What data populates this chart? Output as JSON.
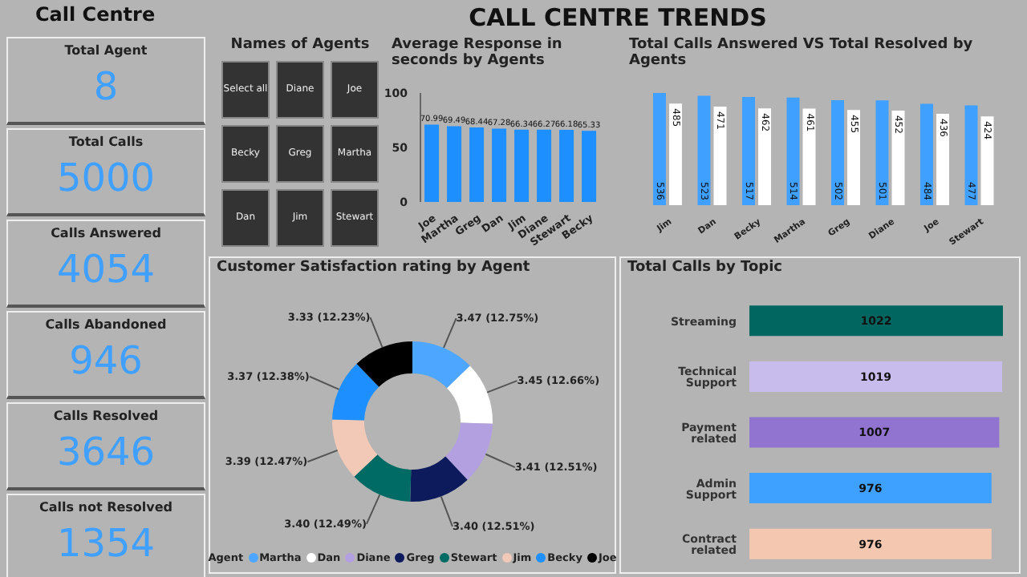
{
  "chart_data": [
    {
      "type": "other",
      "title": "CALL CENTRE TRENDS"
    },
    {
      "type": "other",
      "title": "Call Centre",
      "annotations": [
        "Total Agent",
        "8",
        "Total Calls",
        "5000",
        "Calls Answered",
        "4054",
        "Calls Abandoned",
        "946",
        "Calls Resolved",
        "3646",
        "Calls not Resolved",
        "1354"
      ]
    },
    {
      "type": "other",
      "title": "Names of Agents",
      "annotations": [
        "Select all",
        "Diane",
        "Joe",
        "Becky",
        "Greg",
        "Martha",
        "Dan",
        "Jim",
        "Stewart"
      ]
    },
    {
      "type": "bar",
      "title": "Average Response in seconds by Agents",
      "categories": [
        "Joe",
        "Martha",
        "Greg",
        "Dan",
        "Jim",
        "Diane",
        "Stewart",
        "Becky"
      ],
      "values": [
        70.99,
        69.49,
        68.44,
        67.28,
        66.34,
        66.27,
        66.18,
        65.33
      ],
      "color": "#1e8fff",
      "ylim": [
        0,
        100
      ],
      "yticks": [
        0,
        50,
        100
      ],
      "data_labels": true
    },
    {
      "type": "bar",
      "title": "Total Calls Answered VS Total Resolved by Agents",
      "categories": [
        "Jim",
        "Dan",
        "Becky",
        "Martha",
        "Greg",
        "Diane",
        "Joe",
        "Stewart"
      ],
      "series": [
        {
          "color": "#3fa0ff",
          "values": [
            536,
            523,
            517,
            514,
            502,
            501,
            484,
            477
          ]
        },
        {
          "color": "#ffffff",
          "values": [
            485,
            471,
            462,
            461,
            455,
            452,
            436,
            424
          ]
        }
      ],
      "data_labels": true,
      "tick_labels": "x"
    },
    {
      "type": "donut",
      "title": "Customer Satisfaction rating by Agent",
      "categories": [
        "Martha",
        "Dan",
        "Diane",
        "Greg",
        "Stewart",
        "Jim",
        "Becky",
        "Joe"
      ],
      "values": [
        3.47,
        3.45,
        3.41,
        3.4,
        3.4,
        3.39,
        3.37,
        3.33
      ],
      "value_labels": [
        "3.47 (12.75%)",
        "3.45 (12.66%)",
        "3.41 (12.51%)",
        "3.40 (12.51%)",
        "3.40 (12.49%)",
        "3.39 (12.47%)",
        "3.37 (12.38%)",
        "3.33 (12.23%)"
      ],
      "colors": [
        "#4da6ff",
        "#ffffff",
        "#b3a0e0",
        "#0d1a5c",
        "#006a64",
        "#f2c8b6",
        "#1e8fff",
        "#000000"
      ],
      "legend": "bottom",
      "legend_title": "Agent"
    },
    {
      "type": "bar",
      "orientation": "horizontal",
      "title": "Total Calls by Topic",
      "categories": [
        "Streaming",
        "Technical Support",
        "Payment related",
        "Admin Support",
        "Contract related"
      ],
      "values": [
        1022,
        1019,
        1007,
        976,
        976
      ],
      "colors": [
        "#00665f",
        "#c8bcec",
        "#9173d0",
        "#3ea0ff",
        "#f4c8b0"
      ],
      "data_labels": true,
      "tick_labels": "y"
    }
  ]
}
